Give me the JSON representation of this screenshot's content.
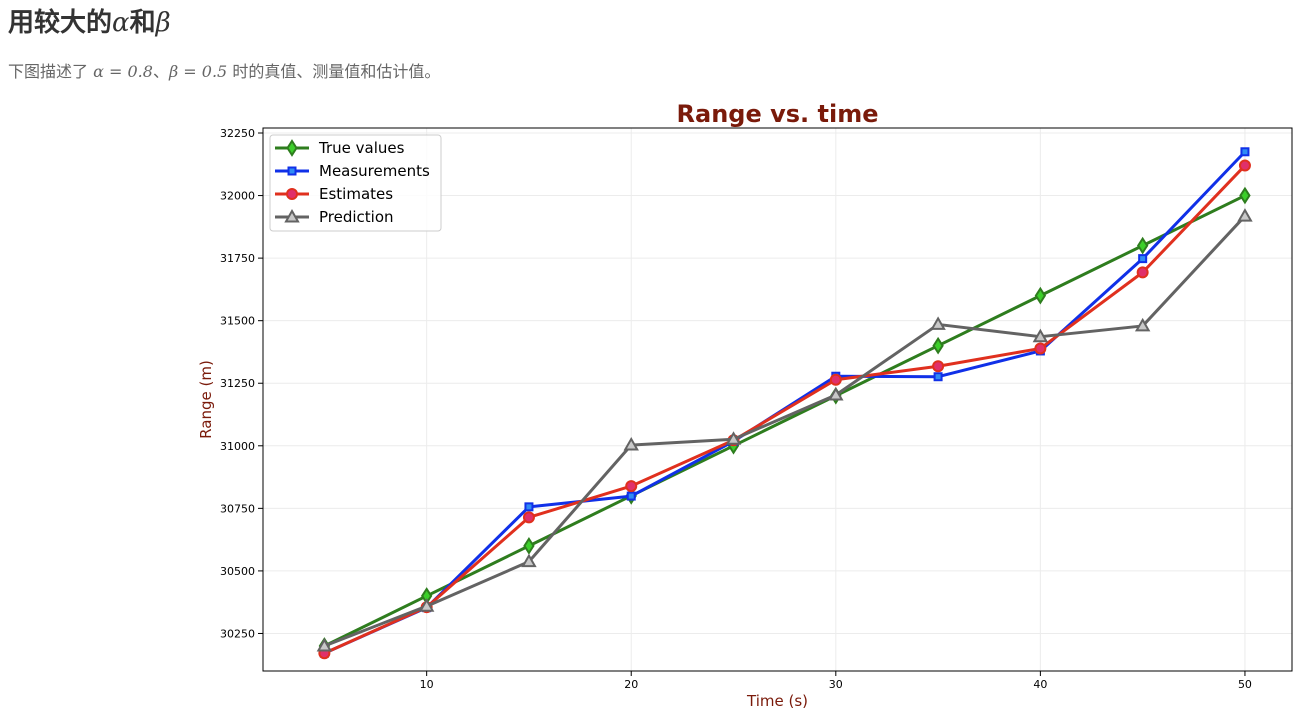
{
  "page": {
    "heading_prefix": "用较大的",
    "heading_alpha": "α",
    "heading_mid": "和",
    "heading_beta": "β",
    "desc_prefix": "下图描述了",
    "desc_alpha_eq": "α = 0.8",
    "desc_sep": "、",
    "desc_beta_eq": "β = 0.5",
    "desc_suffix": "时的真值、测量值和估计值。"
  },
  "chart_data": {
    "type": "line",
    "title": "Range vs. time",
    "xlabel": "Time (s)",
    "ylabel": "Range (m)",
    "xlim": [
      2,
      52.3
    ],
    "ylim": [
      30100,
      32270
    ],
    "xticks": [
      10,
      20,
      30,
      40,
      50
    ],
    "yticks": [
      30250,
      30500,
      30750,
      31000,
      31250,
      31500,
      31750,
      32000,
      32250
    ],
    "grid": true,
    "legend_position": "top-left",
    "x": [
      5,
      10,
      15,
      20,
      25,
      30,
      35,
      40,
      45,
      50
    ],
    "series": [
      {
        "name": "True values",
        "marker": "diamond",
        "color": "#2e7d1e",
        "marker_fill": "#3ccf2a",
        "values": [
          30200,
          30400,
          30600,
          30800,
          31000,
          31200,
          31400,
          31600,
          31800,
          32000
        ]
      },
      {
        "name": "Measurements",
        "marker": "square",
        "color": "#1030e8",
        "marker_fill": "#2f8cf5",
        "values": [
          30171,
          30353,
          30756,
          30799,
          31018,
          31278,
          31276,
          31379,
          31748,
          32175
        ]
      },
      {
        "name": "Estimates",
        "marker": "circle",
        "color": "#e0301e",
        "marker_fill": "#e0306a",
        "values": [
          30171,
          30355,
          30714,
          30839,
          31022,
          31264,
          31318,
          31389,
          31693,
          32120
        ]
      },
      {
        "name": "Prediction",
        "marker": "triangle",
        "color": "#636363",
        "marker_fill": "#c8c8c8",
        "values": [
          30200,
          30359,
          30537,
          31003,
          31026,
          31203,
          31485,
          31436,
          31479,
          31918
        ]
      }
    ]
  }
}
